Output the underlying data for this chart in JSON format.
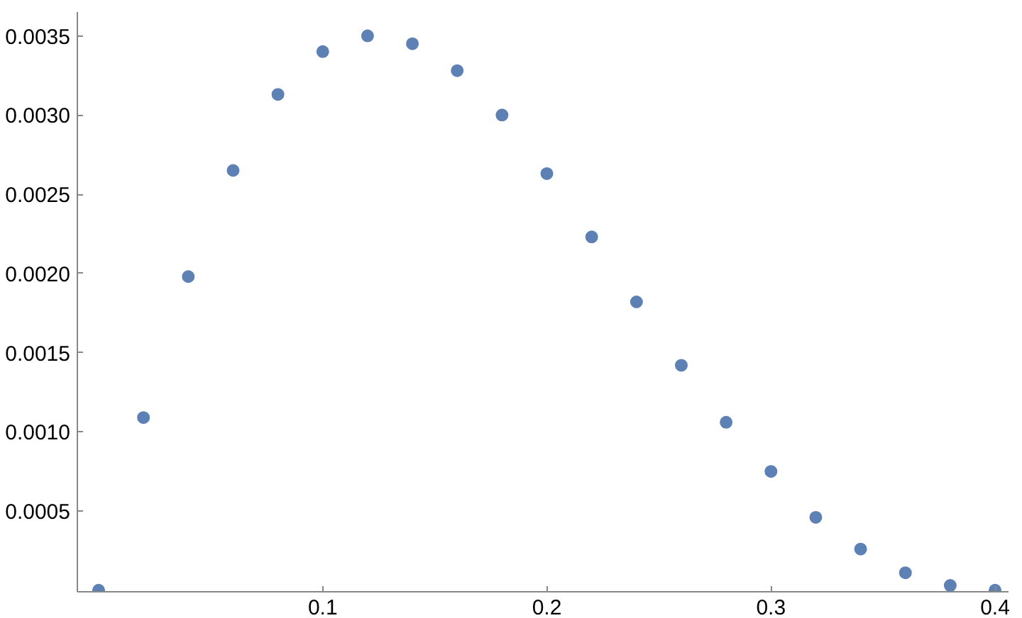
{
  "chart_data": {
    "type": "scatter",
    "marker": "circle",
    "grid": false,
    "x": [
      0,
      0.02,
      0.04,
      0.06,
      0.08,
      0.1,
      0.12,
      0.14,
      0.16,
      0.18,
      0.2,
      0.22,
      0.24,
      0.26,
      0.28,
      0.3,
      0.32,
      0.34,
      0.36,
      0.38,
      0.4
    ],
    "series": [
      {
        "color": "#5e81b5",
        "values": [
          0,
          0.00109,
          0.00198,
          0.00265,
          0.00313,
          0.0034,
          0.0035,
          0.00345,
          0.00328,
          0.003,
          0.00263,
          0.00223,
          0.00182,
          0.00142,
          0.00106,
          0.00075,
          0.00046,
          0.00026,
          0.00011,
          3e-05,
          0
        ]
      }
    ],
    "xlim": [
      -0.0095,
      0.406
    ],
    "ylim": [
      -1e-05,
      0.00365
    ],
    "xticks": [
      0.1,
      0.2,
      0.3,
      0.4
    ],
    "yticks": [
      {
        "value": 0.0005,
        "label": "0.0005"
      },
      {
        "value": 0.001,
        "label": "0.0010"
      },
      {
        "value": 0.0015,
        "label": "0.0015"
      },
      {
        "value": 0.002,
        "label": "0.0020"
      },
      {
        "value": 0.0025,
        "label": "0.0025"
      },
      {
        "value": 0.003,
        "label": "0.0030"
      },
      {
        "value": 0.0035,
        "label": "0.0035"
      }
    ]
  }
}
